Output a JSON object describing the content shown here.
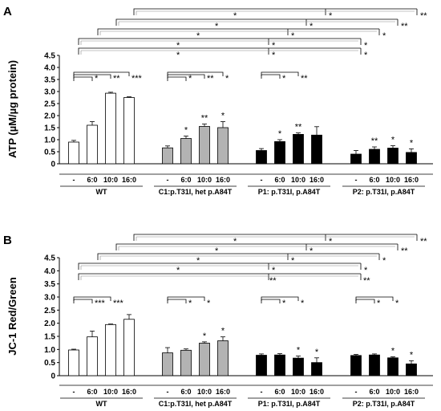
{
  "chart_data": [
    {
      "panel": "A",
      "type": "bar",
      "ylabel": "ATP (µM/µg protein)",
      "ylim": [
        0,
        4.5
      ],
      "yticks": [
        "0",
        "0.5",
        "1.0",
        "1.5",
        "2.0",
        "2.5",
        "3.0",
        "3.5",
        "4.0",
        "4.5"
      ],
      "categories": [
        "-",
        "6:0",
        "10:0",
        "16:0"
      ],
      "groups": [
        {
          "name": "WT",
          "fill": "#ffffff",
          "values": [
            0.9,
            1.6,
            2.93,
            2.75
          ],
          "errors": [
            0.07,
            0.15,
            0.04,
            0.03
          ],
          "stars": [
            "",
            "",
            "",
            ""
          ]
        },
        {
          "name": "C1:p.T31I, het p.A84T",
          "fill": "#b3b3b3",
          "values": [
            0.66,
            1.05,
            1.55,
            1.5
          ],
          "errors": [
            0.08,
            0.1,
            0.1,
            0.25
          ],
          "stars": [
            "",
            "*",
            "**",
            "*"
          ]
        },
        {
          "name": "P1: p.T31I, p.A84T",
          "fill": "#000000",
          "values": [
            0.55,
            0.92,
            1.22,
            1.19
          ],
          "errors": [
            0.08,
            0.08,
            0.06,
            0.35
          ],
          "stars": [
            "",
            "*",
            "**",
            ""
          ]
        },
        {
          "name": "P2: p.T31I, p.A84T",
          "fill": "#000000",
          "values": [
            0.4,
            0.6,
            0.65,
            0.47
          ],
          "errors": [
            0.15,
            0.1,
            0.1,
            0.15
          ],
          "stars": [
            "",
            "**",
            "*",
            "*"
          ]
        }
      ],
      "local_brackets": [
        {
          "group": 0,
          "labels": [
            "*",
            "**",
            "***"
          ]
        },
        {
          "group": 1,
          "labels": [
            "*",
            "**",
            "*"
          ]
        },
        {
          "group": 2,
          "labels": [
            "*",
            "**"
          ]
        }
      ],
      "global_brackets": [
        {
          "labels": [
            "*",
            "*",
            "**"
          ]
        },
        {
          "labels": [
            "*",
            "*",
            "**"
          ]
        },
        {
          "labels": [
            "*",
            "*",
            "*"
          ]
        },
        {
          "labels": [
            "*",
            "*",
            "*"
          ]
        },
        {
          "labels": [
            "*",
            "*",
            "*"
          ]
        }
      ]
    },
    {
      "panel": "B",
      "type": "bar",
      "ylabel": "JC-1 Red/Green",
      "ylim": [
        0,
        4.5
      ],
      "yticks": [
        "0",
        "0.5",
        "1.0",
        "1.5",
        "2.0",
        "2.5",
        "3.0",
        "3.5",
        "4.0",
        "4.5"
      ],
      "categories": [
        "-",
        "6:0",
        "10:0",
        "16:0"
      ],
      "groups": [
        {
          "name": "WT",
          "fill": "#ffffff",
          "values": [
            0.98,
            1.48,
            1.95,
            2.15
          ],
          "errors": [
            0.03,
            0.22,
            0.02,
            0.18
          ],
          "stars": [
            "",
            "",
            "",
            ""
          ]
        },
        {
          "name": "C1:p.T31I, het p.A84T",
          "fill": "#b3b3b3",
          "values": [
            0.87,
            0.97,
            1.24,
            1.33
          ],
          "errors": [
            0.2,
            0.05,
            0.05,
            0.15
          ],
          "stars": [
            "",
            "",
            "*",
            "*"
          ]
        },
        {
          "name": "P1: p.T31I, p.A84T",
          "fill": "#000000",
          "values": [
            0.78,
            0.79,
            0.67,
            0.5
          ],
          "errors": [
            0.05,
            0.05,
            0.08,
            0.18
          ],
          "stars": [
            "",
            "",
            "*",
            "*"
          ]
        },
        {
          "name": "P2: p.T31I, p.A84T",
          "fill": "#000000",
          "values": [
            0.77,
            0.79,
            0.68,
            0.45
          ],
          "errors": [
            0.04,
            0.04,
            0.04,
            0.12
          ],
          "stars": [
            "",
            "",
            "*",
            "*"
          ]
        }
      ],
      "local_brackets": [
        {
          "group": 0,
          "labels": [
            "***",
            "***"
          ]
        },
        {
          "group": 1,
          "labels": [
            "*",
            "*"
          ]
        },
        {
          "group": 2,
          "labels": [
            "*",
            "*"
          ]
        },
        {
          "group": 3,
          "labels": [
            "*",
            "*"
          ]
        }
      ],
      "global_brackets": [
        {
          "labels": [
            "*",
            "*",
            "**"
          ]
        },
        {
          "labels": [
            "*",
            "*",
            "**"
          ]
        },
        {
          "labels": [
            "*",
            "*",
            "*"
          ]
        },
        {
          "labels": [
            "*",
            "*",
            "*"
          ]
        },
        {
          "labels": [
            "**",
            "**"
          ]
        }
      ]
    }
  ]
}
